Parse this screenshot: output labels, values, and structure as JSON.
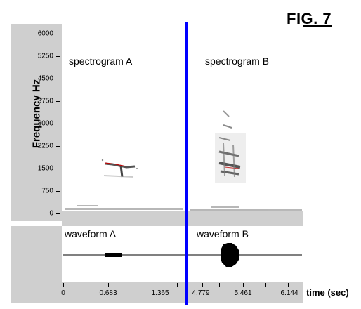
{
  "figure": {
    "title": "FIG. 7",
    "divider_color": "#0000ff",
    "background_color": "#cfcfcf"
  },
  "spectrogram": {
    "ylabel": "Frequency    Hz",
    "yticks": [
      "6000",
      "5250",
      "4500",
      "3750",
      "3000",
      "2250",
      "1500",
      "750",
      "0"
    ],
    "labels": {
      "a": "spectrogram  A",
      "b": "spectrogram  B"
    }
  },
  "waveform": {
    "labels": {
      "a": "waveform  A",
      "b": "waveform  B"
    }
  },
  "time_axis": {
    "xlabel": "time (sec)",
    "tick_labels": [
      "0",
      "0.683",
      "1.365",
      "4.779",
      "5.461",
      "6.144"
    ]
  }
}
